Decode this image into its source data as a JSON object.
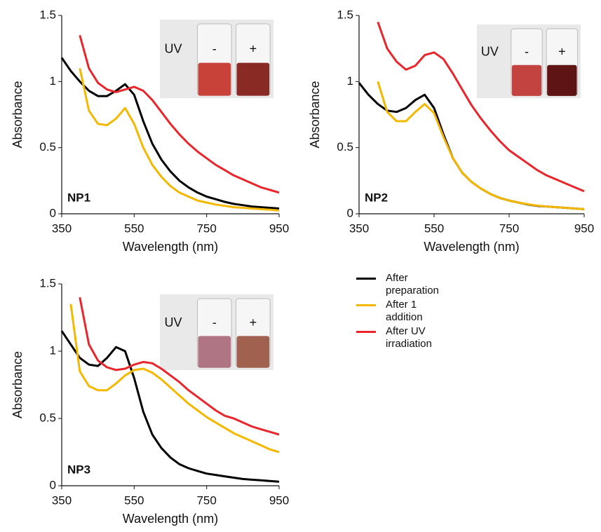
{
  "chart_data": [
    {
      "type": "line",
      "label": "NP1",
      "x_label": "Wavelength (nm)",
      "y_label": "Absorbance",
      "xlim": [
        350,
        950
      ],
      "xticks": [
        350,
        550,
        750,
        950
      ],
      "ylim": [
        0,
        1.5
      ],
      "yticks": [
        0,
        0.5,
        1,
        1.5
      ],
      "inset": {
        "uv": "UV",
        "minus": "-",
        "plus": "+"
      },
      "x": [
        350,
        375,
        400,
        425,
        450,
        475,
        500,
        525,
        550,
        575,
        600,
        625,
        650,
        675,
        700,
        725,
        750,
        775,
        800,
        825,
        850,
        875,
        900,
        925,
        950
      ],
      "series": [
        {
          "name": "After preparation",
          "color": "#000000",
          "values": [
            1.18,
            1.08,
            1.0,
            0.93,
            0.89,
            0.89,
            0.93,
            0.98,
            0.9,
            0.7,
            0.53,
            0.41,
            0.32,
            0.25,
            0.2,
            0.16,
            0.13,
            0.11,
            0.09,
            0.075,
            0.065,
            0.055,
            0.05,
            0.045,
            0.04
          ]
        },
        {
          "name": "After 1 addition",
          "color": "#f5b800",
          "values": [
            null,
            null,
            1.1,
            0.78,
            0.68,
            0.67,
            0.72,
            0.8,
            0.68,
            0.5,
            0.37,
            0.28,
            0.21,
            0.16,
            0.13,
            0.1,
            0.085,
            0.07,
            0.06,
            0.05,
            0.045,
            0.04,
            0.035,
            0.03,
            0.025
          ]
        },
        {
          "name": "After UV irradiation",
          "color": "#e8262b",
          "values": [
            null,
            null,
            1.35,
            1.1,
            0.99,
            0.94,
            0.92,
            0.94,
            0.96,
            0.93,
            0.86,
            0.77,
            0.68,
            0.6,
            0.53,
            0.47,
            0.42,
            0.37,
            0.33,
            0.29,
            0.26,
            0.23,
            0.2,
            0.18,
            0.16
          ]
        }
      ]
    },
    {
      "type": "line",
      "label": "NP2",
      "x_label": "Wavelength (nm)",
      "y_label": "Absorbance",
      "xlim": [
        350,
        950
      ],
      "xticks": [
        350,
        550,
        750,
        950
      ],
      "ylim": [
        0,
        1.5
      ],
      "yticks": [
        0,
        0.5,
        1,
        1.5
      ],
      "inset": {
        "uv": "UV",
        "minus": "-",
        "plus": "+"
      },
      "x": [
        350,
        375,
        400,
        425,
        450,
        475,
        500,
        525,
        550,
        575,
        600,
        625,
        650,
        675,
        700,
        725,
        750,
        775,
        800,
        825,
        850,
        875,
        900,
        925,
        950
      ],
      "series": [
        {
          "color": "#000000",
          "values": [
            0.99,
            0.9,
            0.83,
            0.78,
            0.77,
            0.8,
            0.86,
            0.9,
            0.8,
            0.6,
            0.42,
            0.31,
            0.24,
            0.19,
            0.15,
            0.12,
            0.1,
            0.085,
            0.07,
            0.06,
            0.055,
            0.05,
            0.045,
            0.04,
            0.035
          ]
        },
        {
          "color": "#f5b800",
          "values": [
            null,
            null,
            1.0,
            0.77,
            0.7,
            0.7,
            0.77,
            0.83,
            0.76,
            0.58,
            0.42,
            0.31,
            0.24,
            0.19,
            0.15,
            0.12,
            0.1,
            0.085,
            0.072,
            0.062,
            0.055,
            0.05,
            0.045,
            0.04,
            0.035
          ]
        },
        {
          "color": "#e8262b",
          "values": [
            null,
            null,
            1.45,
            1.25,
            1.15,
            1.09,
            1.12,
            1.2,
            1.22,
            1.17,
            1.06,
            0.94,
            0.82,
            0.72,
            0.63,
            0.55,
            0.48,
            0.43,
            0.38,
            0.33,
            0.29,
            0.26,
            0.23,
            0.2,
            0.17
          ]
        }
      ]
    },
    {
      "type": "line",
      "label": "NP3",
      "x_label": "Wavelength (nm)",
      "y_label": "Absorbance",
      "xlim": [
        350,
        950
      ],
      "xticks": [
        350,
        550,
        750,
        950
      ],
      "ylim": [
        0,
        1.5
      ],
      "yticks": [
        0,
        0.5,
        1,
        1.5
      ],
      "inset": {
        "uv": "UV",
        "minus": "-",
        "plus": "+"
      },
      "x": [
        350,
        375,
        400,
        425,
        450,
        475,
        500,
        525,
        550,
        575,
        600,
        625,
        650,
        675,
        700,
        725,
        750,
        775,
        800,
        825,
        850,
        875,
        900,
        925,
        950
      ],
      "series": [
        {
          "color": "#000000",
          "values": [
            1.15,
            1.05,
            0.95,
            0.9,
            0.89,
            0.95,
            1.03,
            1.0,
            0.8,
            0.55,
            0.38,
            0.28,
            0.21,
            0.16,
            0.13,
            0.11,
            0.09,
            0.08,
            0.07,
            0.06,
            0.05,
            0.045,
            0.04,
            0.035,
            0.03
          ]
        },
        {
          "color": "#f5b800",
          "values": [
            null,
            1.35,
            0.85,
            0.74,
            0.71,
            0.71,
            0.76,
            0.82,
            0.86,
            0.87,
            0.84,
            0.79,
            0.73,
            0.67,
            0.61,
            0.56,
            0.51,
            0.47,
            0.43,
            0.39,
            0.36,
            0.33,
            0.3,
            0.27,
            0.25
          ]
        },
        {
          "color": "#e8262b",
          "values": [
            null,
            null,
            1.4,
            1.05,
            0.93,
            0.88,
            0.86,
            0.87,
            0.9,
            0.92,
            0.91,
            0.87,
            0.82,
            0.77,
            0.71,
            0.66,
            0.61,
            0.56,
            0.52,
            0.5,
            0.47,
            0.44,
            0.42,
            0.4,
            0.38
          ]
        }
      ]
    }
  ]
}
